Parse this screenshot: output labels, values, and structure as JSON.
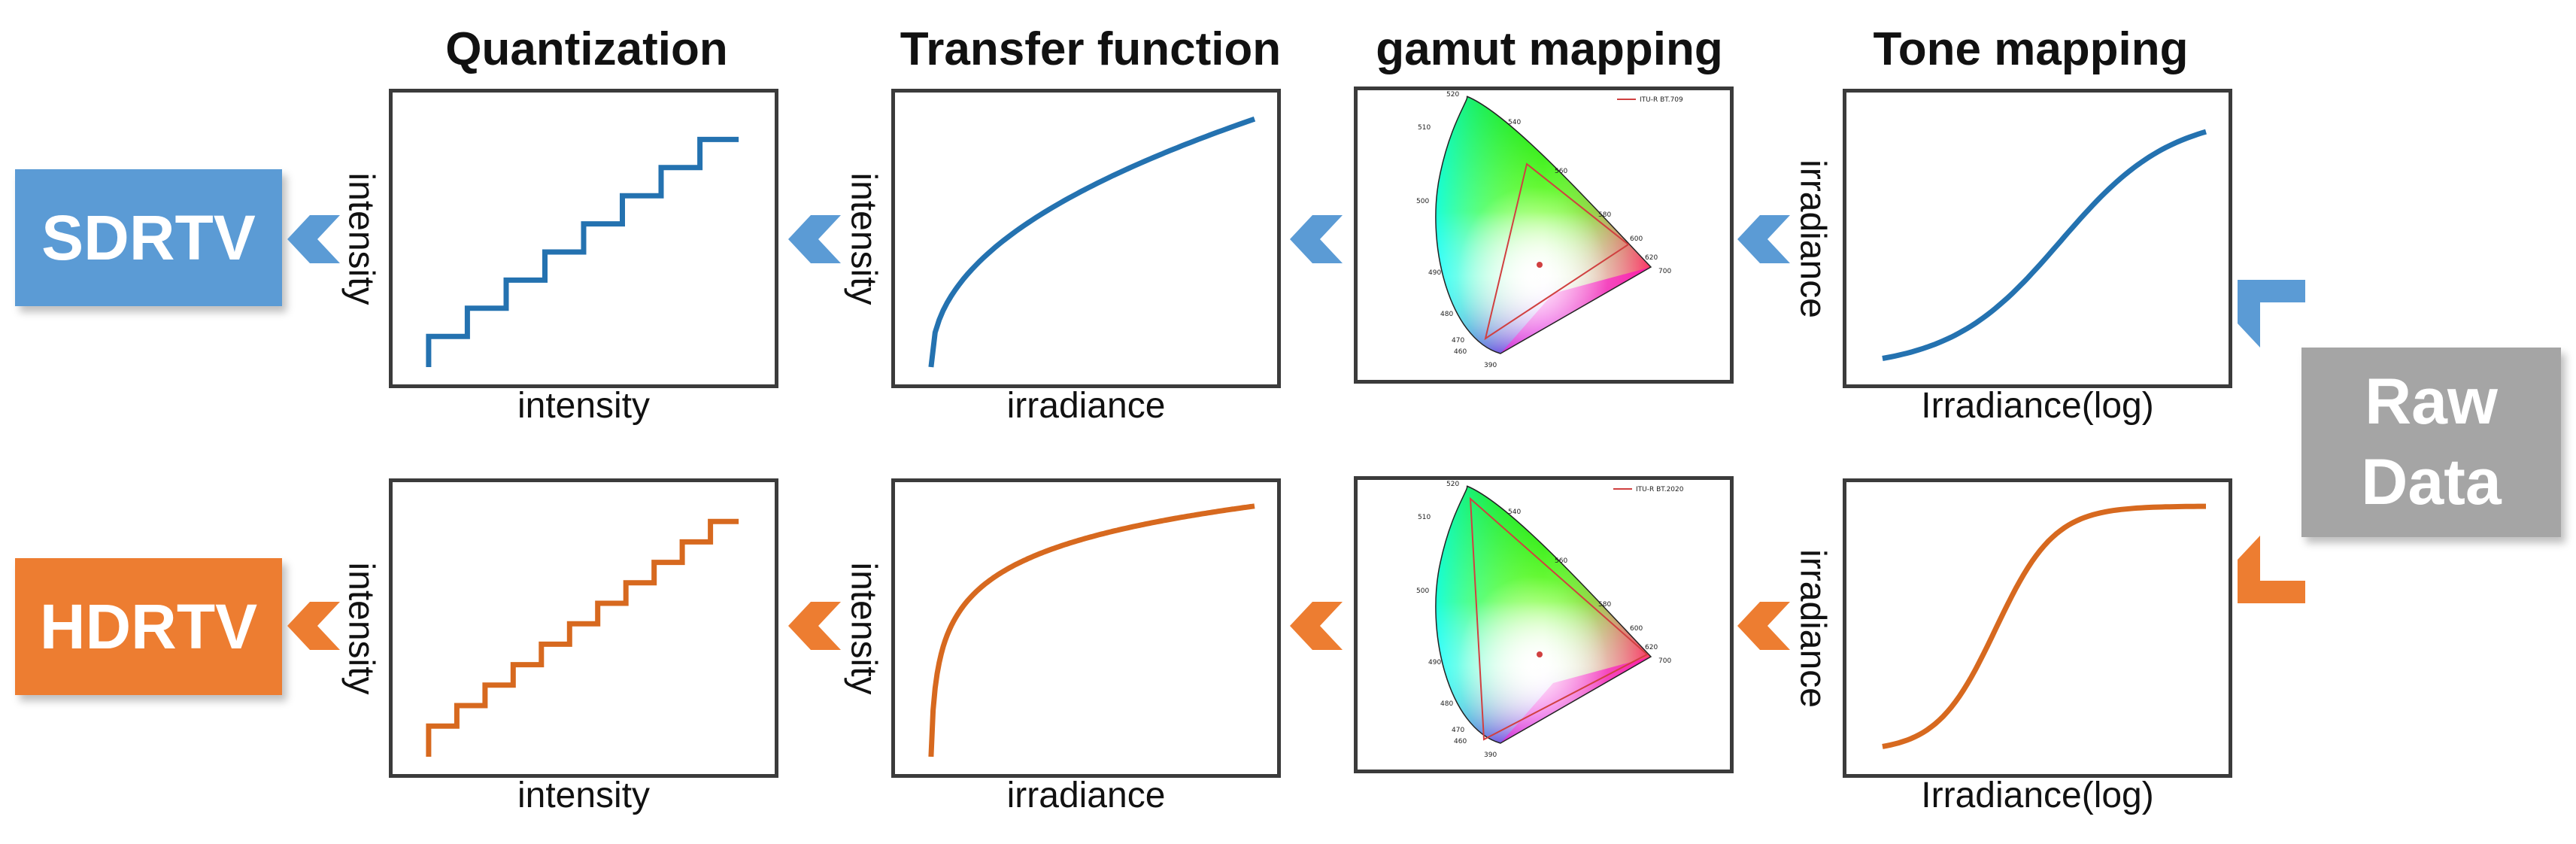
{
  "stages": {
    "quantization": "Quantization",
    "transfer": "Transfer function",
    "gamut": "gamut mapping",
    "tone": "Tone mapping"
  },
  "labels": {
    "intensity": "intensity",
    "irradiance": "irradiance",
    "irradiance_log": "Irradiance(log)"
  },
  "outputs": {
    "sdr": "SDRTV",
    "hdr": "HDRTV"
  },
  "source": {
    "line1": "Raw",
    "line2": "Data"
  },
  "legends": {
    "sdr_gamut": "ITU-R BT.709",
    "hdr_gamut": "ITU-R BT.2020"
  },
  "wavelength_ticks": [
    "520",
    "540",
    "560",
    "580",
    "600",
    "620",
    "700",
    "510",
    "500",
    "490",
    "480",
    "470",
    "460",
    "390"
  ],
  "colors": {
    "sdr": "#2472b0",
    "hdr": "#d7691f",
    "sdr_badge": "#5b9bd5",
    "hdr_badge": "#ed7d31",
    "raw_badge": "#a5a5a5",
    "frame": "#3b3b3b"
  },
  "chart_data": [
    {
      "type": "line",
      "name": "sdr-tone-mapping",
      "xlabel": "Irradiance(log)",
      "ylabel": "irradiance",
      "shape": "sigmoid-gentle"
    },
    {
      "type": "line",
      "name": "hdr-tone-mapping",
      "xlabel": "Irradiance(log)",
      "ylabel": "irradiance",
      "shape": "sigmoid-steep"
    },
    {
      "type": "line",
      "name": "sdr-transfer-function",
      "xlabel": "irradiance",
      "ylabel": "intensity",
      "shape": "power"
    },
    {
      "type": "line",
      "name": "hdr-transfer-function",
      "xlabel": "irradiance",
      "ylabel": "intensity",
      "shape": "log"
    },
    {
      "type": "line",
      "name": "sdr-quantization",
      "xlabel": "intensity",
      "ylabel": "intensity",
      "steps": 8
    },
    {
      "type": "line",
      "name": "hdr-quantization",
      "xlabel": "intensity",
      "ylabel": "intensity",
      "steps": 11
    }
  ]
}
